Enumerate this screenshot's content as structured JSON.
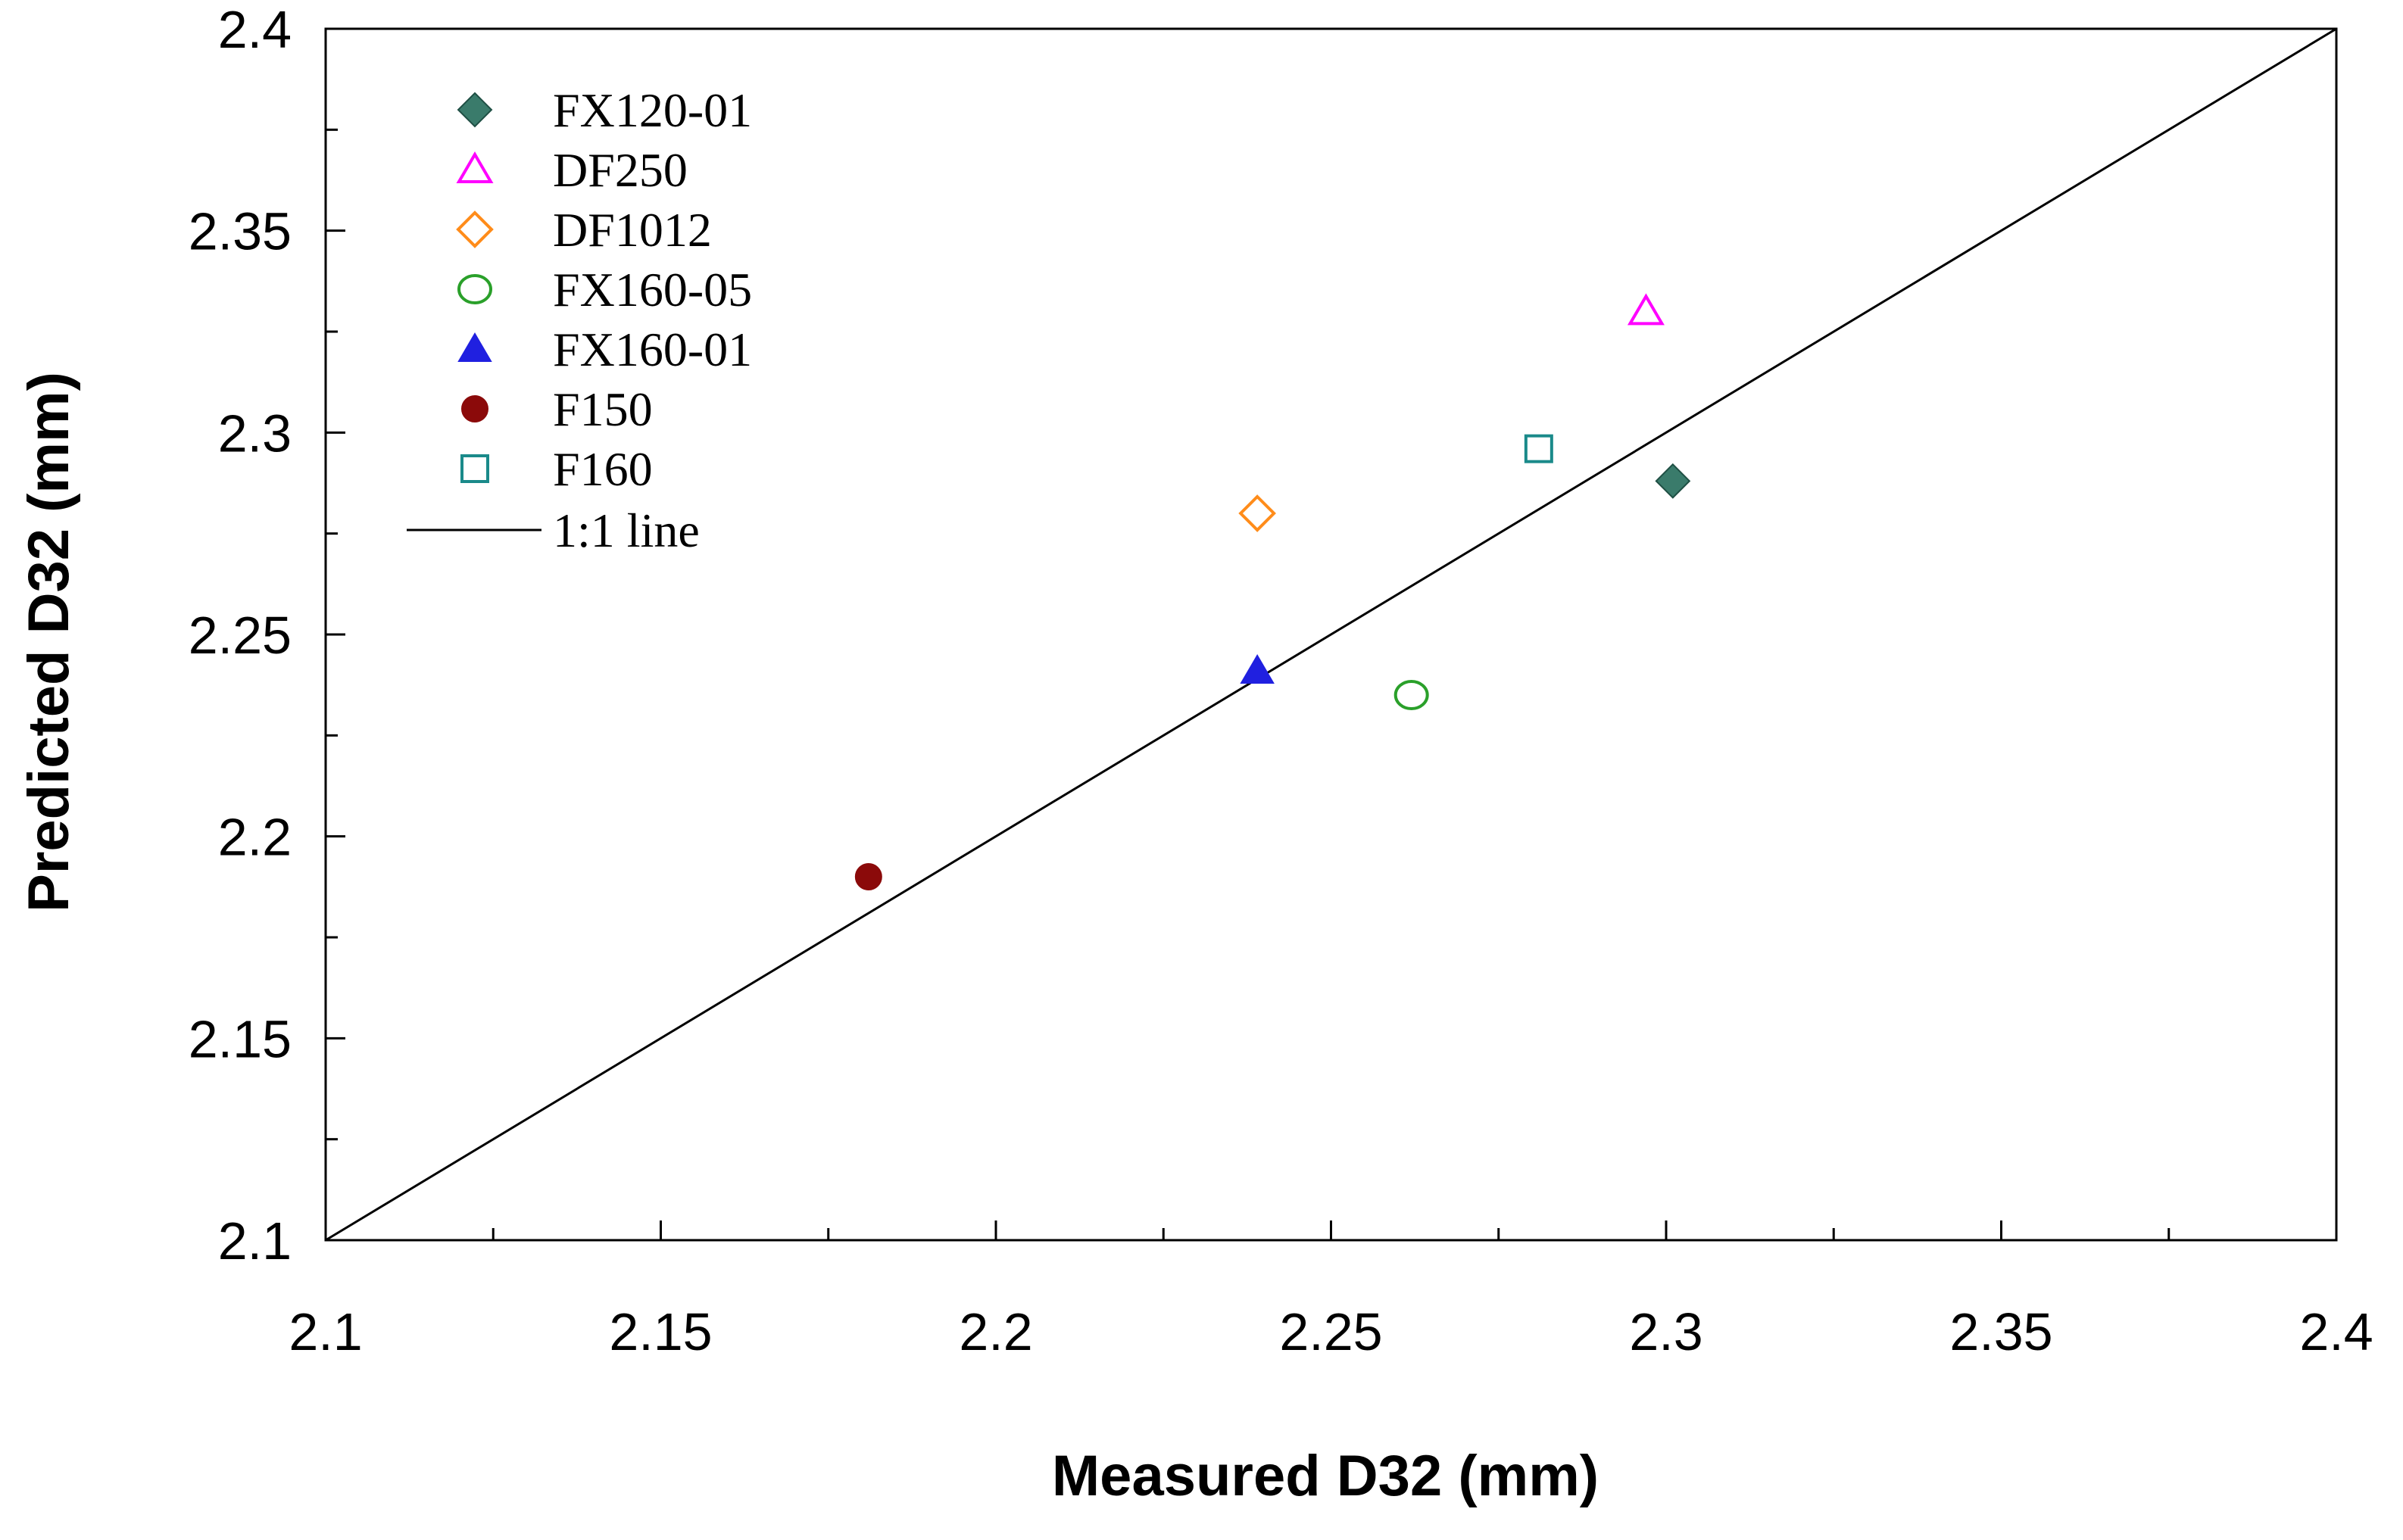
{
  "chart_data": {
    "type": "scatter",
    "title": "",
    "xlabel": "Measured D32 (mm)",
    "ylabel": "Predicted D32 (mm)",
    "xlim": [
      2.1,
      2.4
    ],
    "ylim": [
      2.1,
      2.4
    ],
    "x_ticks": [
      "2.1",
      "2.15",
      "2.2",
      "2.25",
      "2.3",
      "2.35",
      "2.4"
    ],
    "y_ticks": [
      "2.1",
      "2.15",
      "2.2",
      "2.25",
      "2.3",
      "2.35",
      "2.4"
    ],
    "grid": false,
    "legend_position": "top-left",
    "series": [
      {
        "name": "FX120-01",
        "marker": "diamond-filled",
        "color": "#3A7B6B",
        "x": [
          2.301
        ],
        "y": [
          2.288
        ]
      },
      {
        "name": "DF250",
        "marker": "triangle-open",
        "color": "#FF00FF",
        "x": [
          2.297
        ],
        "y": [
          2.33
        ]
      },
      {
        "name": "DF1012",
        "marker": "diamond-open",
        "color": "#FF8C1A",
        "x": [
          2.239
        ],
        "y": [
          2.28
        ]
      },
      {
        "name": "FX160-05",
        "marker": "circle-open",
        "color": "#2AA02A",
        "x": [
          2.262
        ],
        "y": [
          2.235
        ]
      },
      {
        "name": "FX160-01",
        "marker": "triangle-filled",
        "color": "#2020E0",
        "x": [
          2.239
        ],
        "y": [
          2.241
        ]
      },
      {
        "name": "F150",
        "marker": "circle-filled",
        "color": "#8B0A0A",
        "x": [
          2.181
        ],
        "y": [
          2.19
        ]
      },
      {
        "name": "F160",
        "marker": "square-open",
        "color": "#1A8A8A",
        "x": [
          2.281
        ],
        "y": [
          2.296
        ]
      }
    ],
    "reference_line": {
      "name": "1:1 line",
      "x": [
        2.1,
        2.4
      ],
      "y": [
        2.1,
        2.4
      ],
      "color": "#000000"
    }
  }
}
